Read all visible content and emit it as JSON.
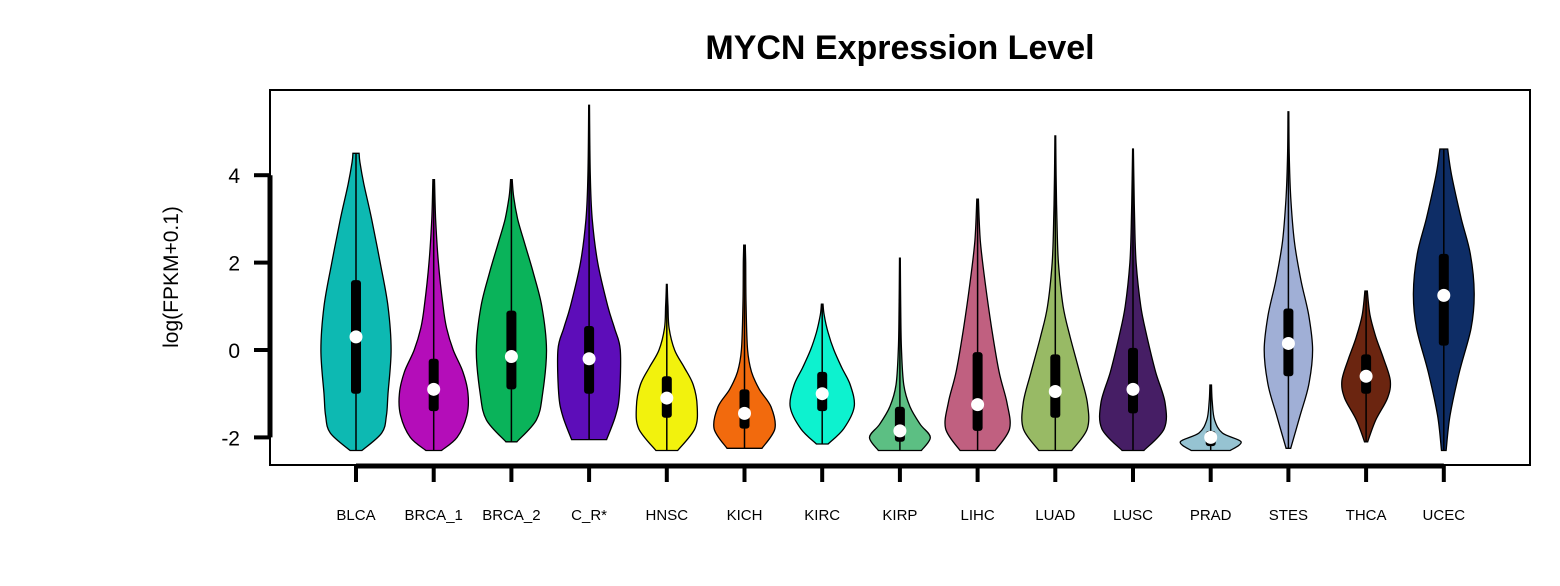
{
  "chart_data": {
    "type": "violin",
    "title": "MYCN Expression Level",
    "ylabel": "log(FPKM+0.1)",
    "xlabel": "",
    "ylim": [
      -2.6,
      5.9
    ],
    "yticks": [
      -2,
      0,
      2,
      4
    ],
    "grid": false,
    "legend": "none",
    "series": [
      {
        "name": "BLCA",
        "color": "#0DB9B2",
        "min": -2.3,
        "max": 4.5,
        "q1": -1.0,
        "median": 0.3,
        "q3": 1.6,
        "profile": [
          [
            -2.3,
            0.15
          ],
          [
            -1.9,
            0.66
          ],
          [
            -1.5,
            0.78
          ],
          [
            -1.0,
            0.82
          ],
          [
            0.0,
            0.9
          ],
          [
            1.0,
            0.82
          ],
          [
            2.0,
            0.62
          ],
          [
            3.0,
            0.4
          ],
          [
            3.8,
            0.2
          ],
          [
            4.3,
            0.1
          ],
          [
            4.5,
            0.08
          ]
        ]
      },
      {
        "name": "BRCA_1",
        "color": "#B40DB9",
        "min": -2.3,
        "max": 3.9,
        "q1": -1.4,
        "median": -0.9,
        "q3": -0.2,
        "profile": [
          [
            -2.3,
            0.2
          ],
          [
            -2.0,
            0.6
          ],
          [
            -1.5,
            0.85
          ],
          [
            -1.0,
            0.88
          ],
          [
            -0.5,
            0.75
          ],
          [
            0.0,
            0.5
          ],
          [
            0.5,
            0.33
          ],
          [
            1.0,
            0.24
          ],
          [
            2.0,
            0.12
          ],
          [
            3.0,
            0.05
          ],
          [
            3.9,
            0.02
          ]
        ]
      },
      {
        "name": "BRCA_2",
        "color": "#0AB35A",
        "min": -2.1,
        "max": 3.9,
        "q1": -0.9,
        "median": -0.15,
        "q3": 0.9,
        "profile": [
          [
            -2.1,
            0.14
          ],
          [
            -1.6,
            0.64
          ],
          [
            -1.0,
            0.8
          ],
          [
            0.0,
            0.9
          ],
          [
            1.0,
            0.78
          ],
          [
            1.8,
            0.55
          ],
          [
            2.5,
            0.32
          ],
          [
            3.0,
            0.16
          ],
          [
            3.5,
            0.06
          ],
          [
            3.9,
            0.02
          ]
        ]
      },
      {
        "name": "C_R*",
        "color": "#5D0DB9",
        "min": -2.05,
        "max": 5.6,
        "q1": -1.0,
        "median": -0.2,
        "q3": 0.55,
        "profile": [
          [
            -2.05,
            0.45
          ],
          [
            -1.5,
            0.68
          ],
          [
            -1.0,
            0.78
          ],
          [
            0.0,
            0.8
          ],
          [
            0.5,
            0.65
          ],
          [
            1.0,
            0.48
          ],
          [
            2.0,
            0.22
          ],
          [
            3.0,
            0.08
          ],
          [
            4.0,
            0.03
          ],
          [
            5.6,
            0.01
          ]
        ]
      },
      {
        "name": "HNSC",
        "color": "#F2F20D",
        "min": -2.3,
        "max": 1.5,
        "q1": -1.55,
        "median": -1.1,
        "q3": -0.6,
        "profile": [
          [
            -2.3,
            0.28
          ],
          [
            -1.8,
            0.72
          ],
          [
            -1.3,
            0.78
          ],
          [
            -0.8,
            0.68
          ],
          [
            -0.4,
            0.45
          ],
          [
            0.0,
            0.2
          ],
          [
            0.5,
            0.06
          ],
          [
            1.0,
            0.03
          ],
          [
            1.5,
            0.01
          ]
        ]
      },
      {
        "name": "KICH",
        "color": "#F26A0D",
        "min": -2.25,
        "max": 2.4,
        "q1": -1.8,
        "median": -1.45,
        "q3": -0.9,
        "profile": [
          [
            -2.25,
            0.45
          ],
          [
            -1.8,
            0.78
          ],
          [
            -1.3,
            0.68
          ],
          [
            -0.9,
            0.38
          ],
          [
            -0.5,
            0.18
          ],
          [
            0.0,
            0.08
          ],
          [
            1.0,
            0.04
          ],
          [
            2.0,
            0.03
          ],
          [
            2.4,
            0.02
          ]
        ]
      },
      {
        "name": "KIRC",
        "color": "#0DF2CF",
        "min": -2.15,
        "max": 1.05,
        "q1": -1.4,
        "median": -1.0,
        "q3": -0.5,
        "profile": [
          [
            -2.15,
            0.15
          ],
          [
            -1.8,
            0.55
          ],
          [
            -1.3,
            0.82
          ],
          [
            -0.8,
            0.72
          ],
          [
            -0.4,
            0.5
          ],
          [
            0.0,
            0.3
          ],
          [
            0.4,
            0.15
          ],
          [
            0.8,
            0.05
          ],
          [
            1.05,
            0.02
          ]
        ]
      },
      {
        "name": "KIRP",
        "color": "#5CBF83",
        "min": -2.3,
        "max": 2.1,
        "q1": -2.1,
        "median": -1.85,
        "q3": -1.3,
        "profile": [
          [
            -2.3,
            0.55
          ],
          [
            -2.0,
            0.78
          ],
          [
            -1.7,
            0.52
          ],
          [
            -1.3,
            0.26
          ],
          [
            -0.8,
            0.1
          ],
          [
            0.0,
            0.04
          ],
          [
            1.0,
            0.02
          ],
          [
            2.1,
            0.01
          ]
        ]
      },
      {
        "name": "LIHC",
        "color": "#C06080",
        "min": -2.3,
        "max": 3.45,
        "q1": -1.85,
        "median": -1.25,
        "q3": -0.05,
        "profile": [
          [
            -2.3,
            0.45
          ],
          [
            -1.8,
            0.82
          ],
          [
            -1.2,
            0.75
          ],
          [
            -0.5,
            0.55
          ],
          [
            0.5,
            0.36
          ],
          [
            1.5,
            0.2
          ],
          [
            2.5,
            0.07
          ],
          [
            3.45,
            0.02
          ]
        ]
      },
      {
        "name": "LUAD",
        "color": "#98BA65",
        "min": -2.3,
        "max": 4.9,
        "q1": -1.55,
        "median": -0.95,
        "q3": -0.1,
        "profile": [
          [
            -2.3,
            0.42
          ],
          [
            -1.8,
            0.82
          ],
          [
            -1.2,
            0.82
          ],
          [
            -0.5,
            0.62
          ],
          [
            0.3,
            0.38
          ],
          [
            1.0,
            0.2
          ],
          [
            2.0,
            0.08
          ],
          [
            3.0,
            0.04
          ],
          [
            4.0,
            0.02
          ],
          [
            4.9,
            0.01
          ]
        ]
      },
      {
        "name": "LUSC",
        "color": "#461E65",
        "min": -2.3,
        "max": 4.6,
        "q1": -1.45,
        "median": -0.9,
        "q3": 0.05,
        "profile": [
          [
            -2.3,
            0.28
          ],
          [
            -1.8,
            0.8
          ],
          [
            -1.2,
            0.82
          ],
          [
            -0.5,
            0.58
          ],
          [
            0.3,
            0.36
          ],
          [
            1.0,
            0.2
          ],
          [
            2.0,
            0.08
          ],
          [
            3.0,
            0.04
          ],
          [
            4.0,
            0.02
          ],
          [
            4.6,
            0.01
          ]
        ]
      },
      {
        "name": "PRAD",
        "color": "#96C3D2",
        "min": -2.3,
        "max": -0.8,
        "q1": -2.2,
        "median": -2.0,
        "q3": -1.85,
        "profile": [
          [
            -2.3,
            0.5
          ],
          [
            -2.1,
            0.78
          ],
          [
            -1.9,
            0.3
          ],
          [
            -1.6,
            0.1
          ],
          [
            -1.2,
            0.04
          ],
          [
            -0.8,
            0.02
          ]
        ]
      },
      {
        "name": "STES",
        "color": "#A0AFD6",
        "min": -2.25,
        "max": 5.45,
        "q1": -0.6,
        "median": 0.15,
        "q3": 0.95,
        "profile": [
          [
            -2.25,
            0.06
          ],
          [
            -1.5,
            0.3
          ],
          [
            -0.8,
            0.52
          ],
          [
            0.0,
            0.62
          ],
          [
            0.8,
            0.52
          ],
          [
            1.6,
            0.32
          ],
          [
            2.5,
            0.15
          ],
          [
            3.5,
            0.06
          ],
          [
            4.5,
            0.02
          ],
          [
            5.45,
            0.01
          ]
        ]
      },
      {
        "name": "THCA",
        "color": "#6B2510",
        "min": -2.1,
        "max": 1.35,
        "q1": -1.0,
        "median": -0.6,
        "q3": -0.1,
        "profile": [
          [
            -2.1,
            0.04
          ],
          [
            -1.6,
            0.25
          ],
          [
            -1.1,
            0.55
          ],
          [
            -0.7,
            0.62
          ],
          [
            -0.2,
            0.45
          ],
          [
            0.3,
            0.25
          ],
          [
            0.8,
            0.1
          ],
          [
            1.35,
            0.03
          ]
        ]
      },
      {
        "name": "UCEC",
        "color": "#0E2D66",
        "min": -2.3,
        "max": 4.6,
        "q1": 0.1,
        "median": 1.25,
        "q3": 2.2,
        "profile": [
          [
            -2.3,
            0.06
          ],
          [
            -1.5,
            0.16
          ],
          [
            -0.5,
            0.4
          ],
          [
            0.5,
            0.7
          ],
          [
            1.3,
            0.78
          ],
          [
            2.2,
            0.68
          ],
          [
            3.0,
            0.45
          ],
          [
            4.0,
            0.2
          ],
          [
            4.6,
            0.1
          ]
        ]
      }
    ]
  }
}
